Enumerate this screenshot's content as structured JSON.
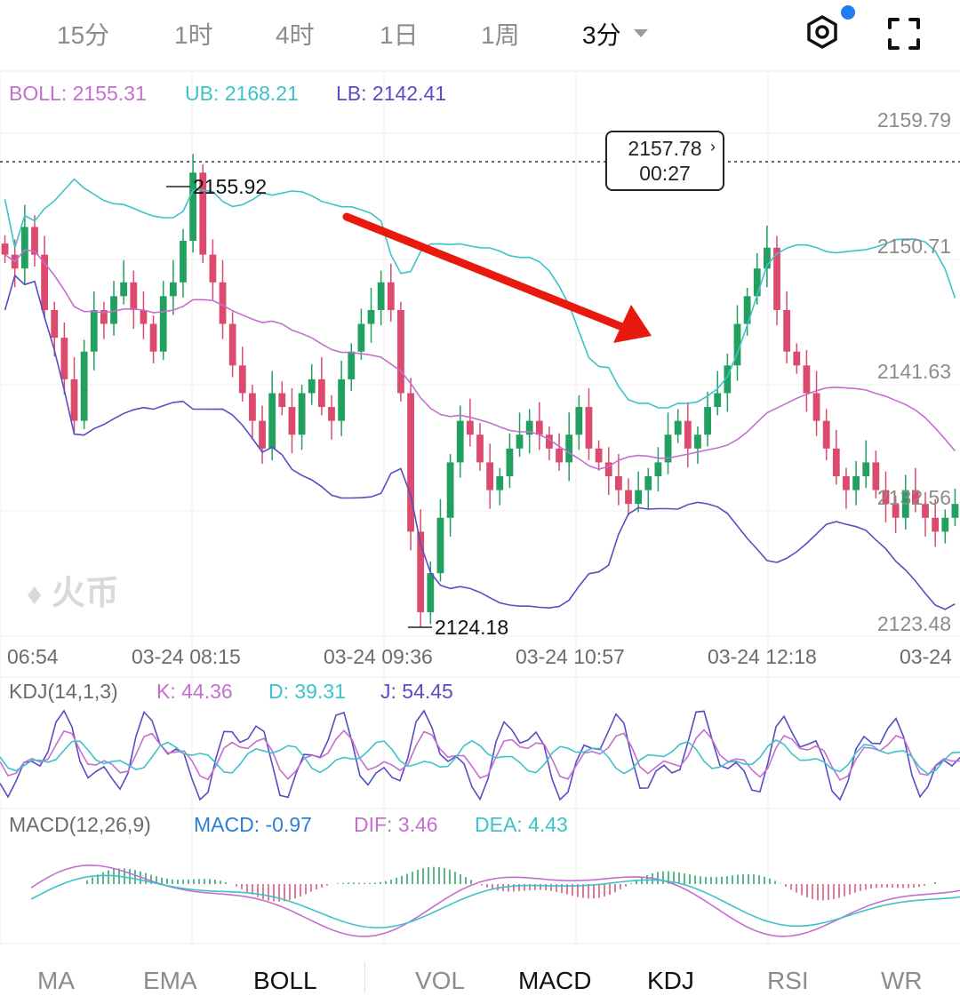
{
  "timeframes": [
    "15分",
    "1时",
    "4时",
    "1日",
    "1周",
    "3分"
  ],
  "active_timeframe": "3分",
  "icons": {
    "settings": "settings-icon",
    "fullscreen": "fullscreen-icon",
    "notification": "notification-dot"
  },
  "boll": {
    "label": "BOLL: 2155.31",
    "ub": "UB: 2168.21",
    "lb": "LB: 2142.41"
  },
  "price_axis": [
    "2159.79",
    "2150.71",
    "2141.63",
    "2132.56",
    "2123.48"
  ],
  "current_price": {
    "price": "2157.78",
    "countdown": "00:27",
    "chevron": "›"
  },
  "high_mark": "2155.92",
  "low_mark": "2124.18",
  "time_axis": [
    "06:54",
    "03-24 08:15",
    "03-24 09:36",
    "03-24 10:57",
    "03-24 12:18",
    "03-24"
  ],
  "watermark": "火币",
  "kdj": {
    "label": "KDJ(14,1,3)",
    "k": "K: 44.36",
    "d": "D: 39.31",
    "j": "J: 54.45"
  },
  "macd": {
    "label": "MACD(12,26,9)",
    "macd": "MACD: -0.97",
    "dif": "DIF: 3.46",
    "dea": "DEA: 4.43"
  },
  "bottom_tabs": [
    "MA",
    "EMA",
    "BOLL",
    "VOL",
    "MACD",
    "KDJ",
    "RSI",
    "WR"
  ],
  "active_tabs": [
    "BOLL",
    "MACD",
    "KDJ"
  ],
  "colors": {
    "up": "#21a05f",
    "down": "#dc4a6e",
    "boll_mid": "#c46fd0",
    "boll_ub": "#3cc3c9",
    "boll_lb": "#5b4bc4",
    "arrow": "#e8190e"
  },
  "chart_data": {
    "type": "candlestick",
    "ylim": [
      2123.48,
      2159.79
    ],
    "candles_close_approx": [
      2150,
      2149,
      2152,
      2150,
      2146,
      2144,
      2141,
      2138,
      2143,
      2146,
      2145,
      2147,
      2148,
      2146,
      2145,
      2143,
      2147,
      2148,
      2151,
      2155.92,
      2150,
      2148,
      2145,
      2142,
      2140,
      2138,
      2136,
      2140,
      2139,
      2137,
      2140,
      2141,
      2139,
      2138,
      2141,
      2143,
      2145,
      2146,
      2148,
      2146,
      2140,
      2130,
      2124.18,
      2127,
      2131,
      2135,
      2138,
      2137,
      2135,
      2133,
      2134,
      2136,
      2137,
      2138,
      2137,
      2136,
      2135,
      2137,
      2139,
      2136,
      2135,
      2134,
      2133,
      2132,
      2133,
      2134,
      2135,
      2137,
      2138,
      2136,
      2137,
      2139,
      2140,
      2142,
      2145,
      2147,
      2149,
      2150.5,
      2146,
      2143,
      2142,
      2140,
      2138,
      2136,
      2134,
      2133,
      2134,
      2135,
      2133,
      2132,
      2131,
      2133,
      2132,
      2131,
      2130,
      2131,
      2132
    ]
  }
}
